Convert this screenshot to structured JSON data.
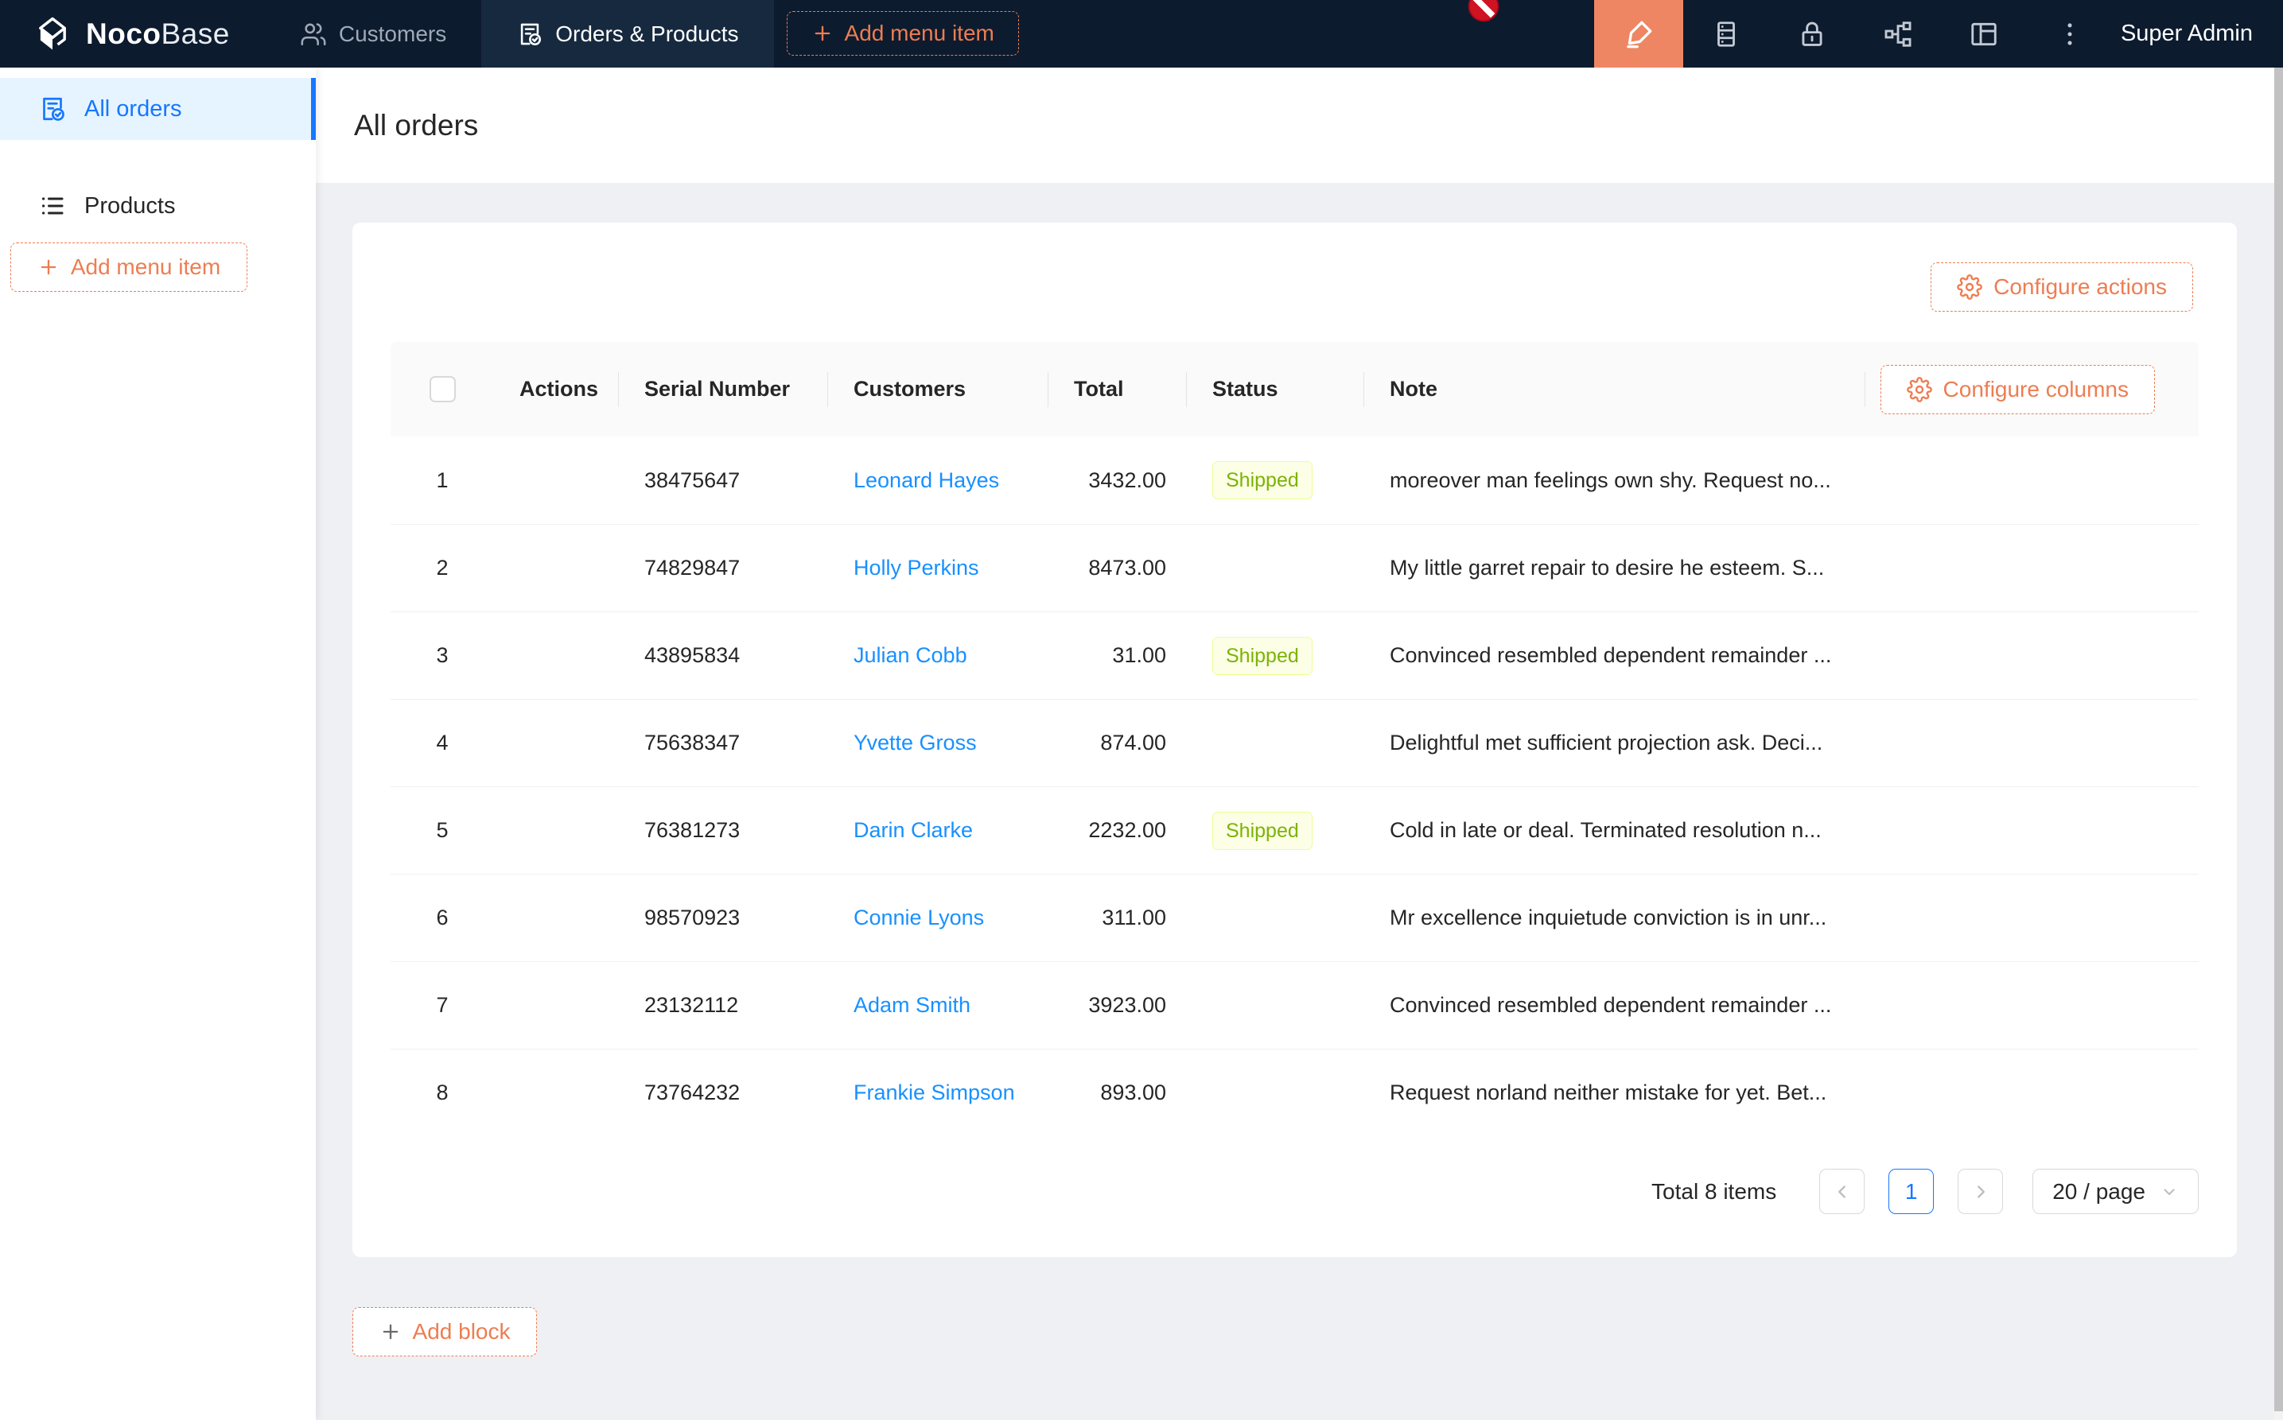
{
  "topbar": {
    "logo_bold": "Noco",
    "logo_light": "Base",
    "nav": [
      {
        "label": "Customers"
      },
      {
        "label": "Orders & Products"
      }
    ],
    "add_menu_item_label": "Add menu item",
    "user_label": "Super Admin"
  },
  "sidebar": {
    "items": [
      {
        "label": "All orders"
      },
      {
        "label": "Products"
      }
    ],
    "add_menu_item_label": "Add menu item"
  },
  "page": {
    "title": "All orders"
  },
  "card": {
    "configure_actions_label": "Configure actions",
    "configure_columns_label": "Configure columns"
  },
  "table": {
    "columns": {
      "actions": "Actions",
      "serial": "Serial Number",
      "customers": "Customers",
      "total": "Total",
      "status": "Status",
      "note": "Note"
    },
    "rows": [
      {
        "index": "1",
        "serial": "38475647",
        "customer": "Leonard Hayes",
        "total": "3432.00",
        "status": "Shipped",
        "note": "moreover man feelings own shy. Request no..."
      },
      {
        "index": "2",
        "serial": "74829847",
        "customer": "Holly Perkins",
        "total": "8473.00",
        "status": "",
        "note": "My little garret repair to desire he esteem. S..."
      },
      {
        "index": "3",
        "serial": "43895834",
        "customer": "Julian Cobb",
        "total": "31.00",
        "status": "Shipped",
        "note": "Convinced resembled dependent remainder ..."
      },
      {
        "index": "4",
        "serial": "75638347",
        "customer": "Yvette Gross",
        "total": "874.00",
        "status": "",
        "note": "Delightful met sufficient projection ask. Deci..."
      },
      {
        "index": "5",
        "serial": "76381273",
        "customer": "Darin Clarke",
        "total": "2232.00",
        "status": "Shipped",
        "note": "Cold in late or deal. Terminated resolution n..."
      },
      {
        "index": "6",
        "serial": "98570923",
        "customer": "Connie Lyons",
        "total": "311.00",
        "status": "",
        "note": "Mr excellence inquietude conviction is in unr..."
      },
      {
        "index": "7",
        "serial": "23132112",
        "customer": "Adam Smith",
        "total": "3923.00",
        "status": "",
        "note": "Convinced resembled dependent remainder ..."
      },
      {
        "index": "8",
        "serial": "73764232",
        "customer": "Frankie Simpson",
        "total": "893.00",
        "status": "",
        "note": "Request norland neither mistake for yet. Bet..."
      }
    ],
    "pagination": {
      "total_label": "Total 8 items",
      "current_page": "1",
      "page_size_label": "20 / page"
    }
  },
  "add_block_label": "Add block",
  "colors": {
    "accent_orange": "#ed7d52",
    "navbar_bg": "#0d1b2e",
    "navbar_active_tab_bg": "#16293f",
    "link_blue": "#1890ff",
    "sidebar_active_blue": "#1677ff",
    "sidebar_active_bg": "#e6f4ff",
    "badge_bg": "#fcffe6",
    "badge_border": "#eaff8f",
    "badge_text": "#7cb305",
    "page_bg": "#eef0f4"
  }
}
